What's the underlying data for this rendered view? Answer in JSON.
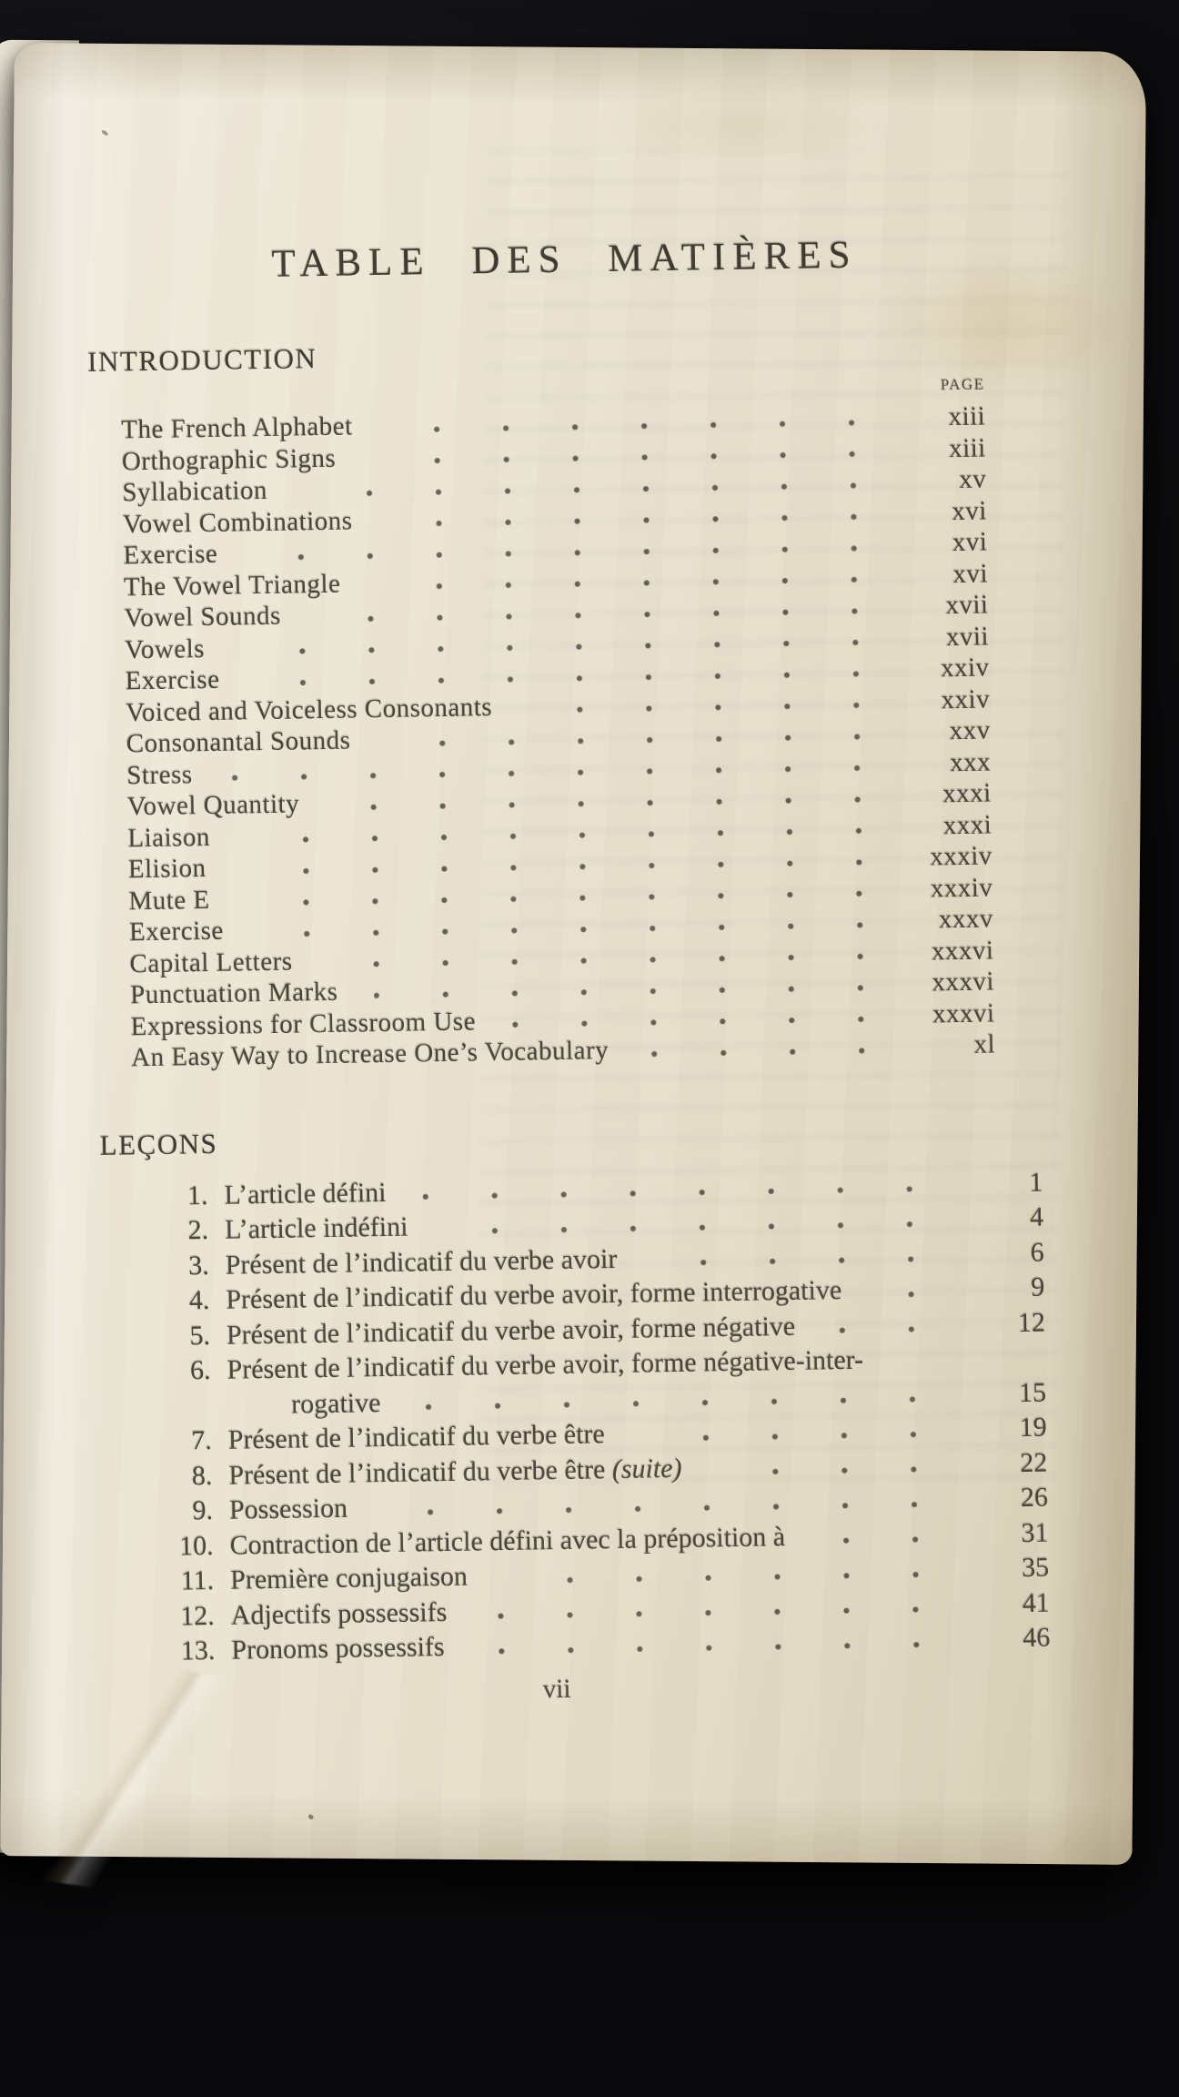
{
  "photo": {
    "background_color": "#101013",
    "paper_color": "#e9e2d0",
    "ink_color": "#4a453b"
  },
  "page": {
    "title": "TABLE  DES  MATIÈRES",
    "folio": "vii",
    "page_column_label": "PAGE",
    "intro": {
      "heading": "INTRODUCTION",
      "entries": [
        {
          "label": "The French Alphabet",
          "page": "xiii"
        },
        {
          "label": "Orthographic Signs",
          "page": "xiii"
        },
        {
          "label": "Syllabication",
          "page": "xv"
        },
        {
          "label": "Vowel Combinations",
          "page": "xvi"
        },
        {
          "label": "Exercise",
          "page": "xvi"
        },
        {
          "label": "The Vowel Triangle",
          "page": "xvi"
        },
        {
          "label": "Vowel Sounds",
          "page": "xvii"
        },
        {
          "label": "Vowels",
          "page": "xvii"
        },
        {
          "label": "Exercise",
          "page": "xxiv"
        },
        {
          "label": "Voiced and Voiceless Consonants",
          "page": "xxiv"
        },
        {
          "label": "Consonantal Sounds",
          "page": "xxv"
        },
        {
          "label": "Stress",
          "page": "xxx"
        },
        {
          "label": "Vowel Quantity",
          "page": "xxxi"
        },
        {
          "label": "Liaison",
          "page": "xxxi"
        },
        {
          "label": "Elision",
          "page": "xxxiv"
        },
        {
          "label": "Mute E",
          "page": "xxxiv"
        },
        {
          "label": "Exercise",
          "page": "xxxv"
        },
        {
          "label": "Capital Letters",
          "page": "xxxvi"
        },
        {
          "label": "Punctuation Marks",
          "page": "xxxvi"
        },
        {
          "label": "Expressions for Classroom Use",
          "page": "xxxvi"
        },
        {
          "label": "An Easy Way to Increase One’s Vocabulary",
          "page": "xl"
        }
      ]
    },
    "lecons": {
      "heading": "LEÇONS",
      "entries": [
        {
          "num": "1.",
          "label": "L’article défini",
          "page": "1"
        },
        {
          "num": "2.",
          "label": "L’article indéfini",
          "page": "4"
        },
        {
          "num": "3.",
          "label": "Présent de l’indicatif du verbe avoir",
          "page": "6"
        },
        {
          "num": "4.",
          "label": "Présent de l’indicatif du verbe avoir, forme interrogative",
          "page": "9"
        },
        {
          "num": "5.",
          "label": "Présent de l’indicatif du verbe avoir, forme négative",
          "page": "12"
        },
        {
          "num": "6.",
          "label": "Présent de l’indicatif du verbe avoir, forme négative-inter-",
          "label2": "rogative",
          "page": "15"
        },
        {
          "num": "7.",
          "label": "Présent de l’indicatif du verbe être",
          "page": "19"
        },
        {
          "num": "8.",
          "label": "Présent de l’indicatif du verbe être ",
          "italic_suffix": "(suite)",
          "page": "22"
        },
        {
          "num": "9.",
          "label": "Possession",
          "page": "26"
        },
        {
          "num": "10.",
          "label": "Contraction de l’article défini avec la préposition à",
          "page": "31"
        },
        {
          "num": "11.",
          "label": "Première conjugaison",
          "page": "35"
        },
        {
          "num": "12.",
          "label": "Adjectifs possessifs",
          "page": "41"
        },
        {
          "num": "13.",
          "label": "Pronoms possessifs",
          "page": "46"
        }
      ]
    }
  }
}
